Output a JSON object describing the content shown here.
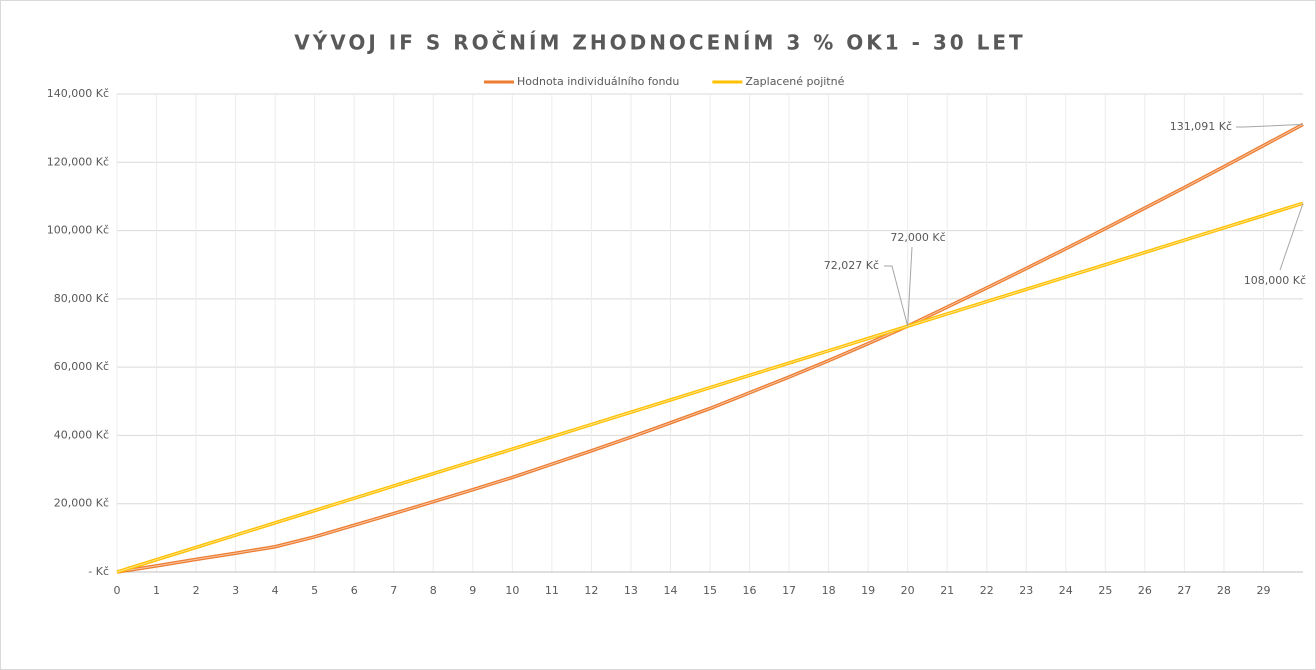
{
  "chart_data": {
    "type": "line",
    "title": "VÝVOJ IF S ROČNÍM ZHODNOCENÍM 3 % OK1 - 30 LET",
    "x": [
      0,
      1,
      2,
      3,
      4,
      5,
      6,
      7,
      8,
      9,
      10,
      11,
      12,
      13,
      14,
      15,
      16,
      17,
      18,
      19,
      20,
      21,
      22,
      23,
      24,
      25,
      26,
      27,
      28,
      29,
      30
    ],
    "series": [
      {
        "name": "Hodnota individuálního fondu",
        "color": "#ed7d31",
        "values": [
          0,
          1800,
          3700,
          5500,
          7400,
          10300,
          13700,
          17100,
          20600,
          24100,
          27700,
          31600,
          35500,
          39500,
          43700,
          47900,
          52500,
          57100,
          61900,
          66900,
          72027,
          77600,
          83200,
          88900,
          94700,
          100600,
          106600,
          112600,
          118700,
          124900,
          131091
        ]
      },
      {
        "name": "Zaplacené pojitné",
        "color": "#ffc000",
        "values": [
          0,
          3600,
          7200,
          10800,
          14400,
          18000,
          21600,
          25200,
          28800,
          32400,
          36000,
          39600,
          43200,
          46800,
          50400,
          54000,
          57600,
          61200,
          64800,
          68400,
          72000,
          75600,
          79200,
          82800,
          86400,
          90000,
          93600,
          97200,
          100800,
          104400,
          108000
        ]
      }
    ],
    "xlim": [
      0,
      30
    ],
    "xticks": [
      0,
      1,
      2,
      3,
      4,
      5,
      6,
      7,
      8,
      9,
      10,
      11,
      12,
      13,
      14,
      15,
      16,
      17,
      18,
      19,
      20,
      21,
      22,
      23,
      24,
      25,
      26,
      27,
      28,
      29
    ],
    "ylim": [
      0,
      140000
    ],
    "yticks": [
      {
        "value": 0,
        "label": "-   Kč"
      },
      {
        "value": 20000,
        "label": "20,000 Kč"
      },
      {
        "value": 40000,
        "label": "40,000 Kč"
      },
      {
        "value": 60000,
        "label": "60,000 Kč"
      },
      {
        "value": 80000,
        "label": "80,000 Kč"
      },
      {
        "value": 100000,
        "label": "100,000 Kč"
      },
      {
        "value": 120000,
        "label": "120,000 Kč"
      },
      {
        "value": 140000,
        "label": "140,000 Kč"
      }
    ],
    "grid": true,
    "legend": "top",
    "annotations": [
      "131,091 Kč",
      "108,000 Kč",
      "72,027 Kč",
      "72,000 Kč"
    ]
  }
}
